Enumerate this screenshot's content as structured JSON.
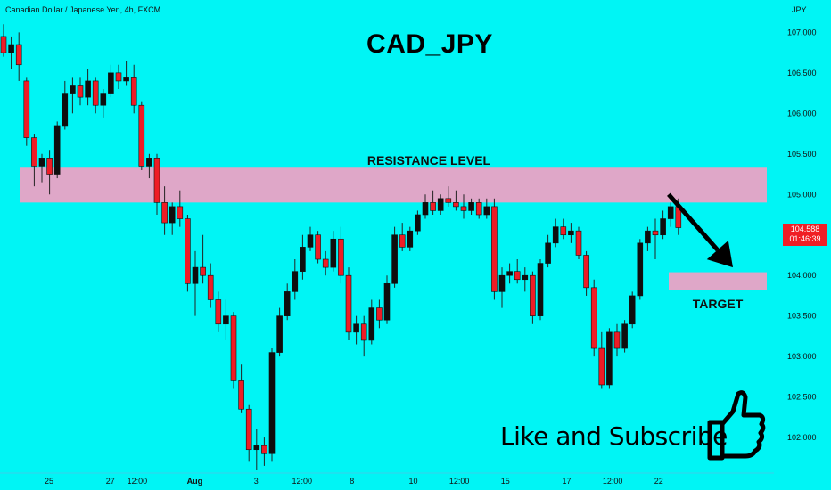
{
  "header": {
    "symbol_info": "Canadian Dollar / Japanese Yen, 4h, FXCM",
    "currency": "JPY",
    "title": "CAD_JPY"
  },
  "annotations": {
    "resistance_label": "RESISTANCE LEVEL",
    "target_label": "TARGET",
    "cta": "Like and Subscribe",
    "resistance_zone": [
      104.9,
      105.33
    ],
    "target_zone": [
      103.82,
      104.04
    ],
    "arrow": {
      "from": [
        56.5,
        105.0
      ],
      "to": [
        60.0,
        104.1
      ]
    }
  },
  "price_badge": {
    "price": "104.588",
    "countdown": "01:46:39"
  },
  "colors": {
    "background": "#00f5f5",
    "bull": "#0e0e0e",
    "bear": "#ee1c25",
    "zone": "#dfa7c8",
    "badge": "#f01e24"
  },
  "icons": {
    "like": "thumbs-up-icon",
    "arrow": "down-arrow-icon"
  },
  "chart_data": {
    "type": "candlestick",
    "ylim": [
      101.55,
      107.4
    ],
    "yticks": [
      102.0,
      102.5,
      103.0,
      103.5,
      104.0,
      104.5,
      105.0,
      105.5,
      106.0,
      106.5,
      107.0
    ],
    "ytick_labels": [
      "102.000",
      "102.500",
      "103.000",
      "103.500",
      "104.000",
      "104.500",
      "105.000",
      "105.500",
      "106.000",
      "106.500",
      "107.000"
    ],
    "xticks": [
      {
        "label": "25",
        "i": 5
      },
      {
        "label": "27",
        "i": 13
      },
      {
        "label": "12:00",
        "i": 16.5
      },
      {
        "label": "Aug",
        "i": 24
      },
      {
        "label": "3",
        "i": 32
      },
      {
        "label": "12:00",
        "i": 38
      },
      {
        "label": "8",
        "i": 44.5
      },
      {
        "label": "10",
        "i": 52.5
      },
      {
        "label": "12:00",
        "i": 58.5
      },
      {
        "label": "15",
        "i": 64.5
      },
      {
        "label": "17",
        "i": 72.5
      },
      {
        "label": "12:00",
        "i": 78.5
      },
      {
        "label": "22",
        "i": 84.5
      }
    ],
    "current_price": 104.588,
    "candles": [
      [
        106.95,
        107.1,
        106.7,
        106.75
      ],
      [
        106.75,
        106.95,
        106.55,
        106.85
      ],
      [
        106.85,
        107.0,
        106.4,
        106.6
      ],
      [
        106.4,
        106.45,
        105.6,
        105.7
      ],
      [
        105.7,
        105.75,
        105.1,
        105.35
      ],
      [
        105.35,
        105.5,
        105.15,
        105.45
      ],
      [
        105.45,
        105.55,
        105.0,
        105.25
      ],
      [
        105.25,
        105.9,
        105.2,
        105.85
      ],
      [
        105.85,
        106.4,
        105.8,
        106.25
      ],
      [
        106.25,
        106.45,
        106.0,
        106.35
      ],
      [
        106.35,
        106.45,
        106.1,
        106.2
      ],
      [
        106.2,
        106.55,
        106.1,
        106.4
      ],
      [
        106.4,
        106.45,
        106.0,
        106.1
      ],
      [
        106.1,
        106.3,
        105.95,
        106.25
      ],
      [
        106.25,
        106.6,
        106.2,
        106.5
      ],
      [
        106.5,
        106.6,
        106.3,
        106.4
      ],
      [
        106.4,
        106.65,
        106.35,
        106.45
      ],
      [
        106.45,
        106.6,
        106.0,
        106.1
      ],
      [
        106.1,
        106.15,
        105.3,
        105.35
      ],
      [
        105.35,
        105.5,
        105.2,
        105.45
      ],
      [
        105.45,
        105.5,
        104.75,
        104.9
      ],
      [
        104.9,
        105.1,
        104.5,
        104.65
      ],
      [
        104.65,
        104.9,
        104.5,
        104.85
      ],
      [
        104.85,
        105.05,
        104.6,
        104.7
      ],
      [
        104.7,
        104.75,
        103.8,
        103.9
      ],
      [
        103.9,
        104.3,
        103.5,
        104.1
      ],
      [
        104.1,
        104.5,
        103.9,
        104.0
      ],
      [
        104.0,
        104.15,
        103.6,
        103.7
      ],
      [
        103.7,
        103.8,
        103.3,
        103.4
      ],
      [
        103.4,
        103.7,
        103.2,
        103.5
      ],
      [
        103.5,
        103.55,
        102.6,
        102.7
      ],
      [
        102.7,
        102.9,
        102.3,
        102.35
      ],
      [
        102.35,
        102.4,
        101.7,
        101.85
      ],
      [
        101.85,
        102.1,
        101.6,
        101.9
      ],
      [
        101.9,
        102.0,
        101.65,
        101.8
      ],
      [
        101.8,
        103.1,
        101.7,
        103.05
      ],
      [
        103.05,
        103.6,
        103.0,
        103.5
      ],
      [
        103.5,
        103.9,
        103.45,
        103.8
      ],
      [
        103.8,
        104.2,
        103.7,
        104.05
      ],
      [
        104.05,
        104.5,
        103.95,
        104.35
      ],
      [
        104.35,
        104.6,
        104.3,
        104.5
      ],
      [
        104.5,
        104.55,
        104.15,
        104.2
      ],
      [
        104.2,
        104.3,
        104.0,
        104.1
      ],
      [
        104.1,
        104.55,
        104.05,
        104.45
      ],
      [
        104.45,
        104.6,
        103.9,
        104.0
      ],
      [
        104.0,
        104.1,
        103.2,
        103.3
      ],
      [
        103.3,
        103.5,
        103.15,
        103.4
      ],
      [
        103.4,
        103.5,
        103.0,
        103.2
      ],
      [
        103.2,
        103.7,
        103.15,
        103.6
      ],
      [
        103.6,
        103.7,
        103.35,
        103.45
      ],
      [
        103.45,
        104.0,
        103.4,
        103.9
      ],
      [
        103.9,
        104.6,
        103.85,
        104.5
      ],
      [
        104.5,
        104.65,
        104.3,
        104.35
      ],
      [
        104.35,
        104.6,
        104.3,
        104.55
      ],
      [
        104.55,
        104.8,
        104.5,
        104.75
      ],
      [
        104.75,
        105.0,
        104.7,
        104.9
      ],
      [
        104.9,
        105.05,
        104.75,
        104.8
      ],
      [
        104.8,
        105.0,
        104.75,
        104.95
      ],
      [
        104.95,
        105.1,
        104.85,
        104.9
      ],
      [
        104.9,
        105.05,
        104.8,
        104.85
      ],
      [
        104.85,
        105.0,
        104.7,
        104.8
      ],
      [
        104.8,
        104.95,
        104.75,
        104.9
      ],
      [
        104.9,
        104.95,
        104.7,
        104.75
      ],
      [
        104.75,
        104.95,
        104.7,
        104.85
      ],
      [
        104.85,
        104.95,
        103.7,
        103.8
      ],
      [
        103.8,
        104.1,
        103.6,
        104.0
      ],
      [
        104.0,
        104.15,
        103.9,
        104.05
      ],
      [
        104.05,
        104.2,
        103.9,
        103.95
      ],
      [
        103.95,
        104.1,
        103.8,
        104.0
      ],
      [
        104.0,
        104.05,
        103.4,
        103.5
      ],
      [
        103.5,
        104.2,
        103.45,
        104.15
      ],
      [
        104.15,
        104.5,
        104.1,
        104.4
      ],
      [
        104.4,
        104.7,
        104.35,
        104.6
      ],
      [
        104.6,
        104.7,
        104.45,
        104.5
      ],
      [
        104.5,
        104.65,
        104.4,
        104.55
      ],
      [
        104.55,
        104.6,
        104.2,
        104.25
      ],
      [
        104.25,
        104.3,
        103.75,
        103.85
      ],
      [
        103.85,
        103.95,
        103.0,
        103.1
      ],
      [
        103.1,
        103.3,
        102.6,
        102.65
      ],
      [
        102.65,
        103.35,
        102.6,
        103.3
      ],
      [
        103.3,
        103.4,
        103.0,
        103.1
      ],
      [
        103.1,
        103.45,
        103.05,
        103.4
      ],
      [
        103.4,
        103.8,
        103.35,
        103.75
      ],
      [
        103.75,
        104.45,
        103.7,
        104.4
      ],
      [
        104.4,
        104.6,
        104.3,
        104.55
      ],
      [
        104.55,
        104.7,
        104.2,
        104.5
      ],
      [
        104.5,
        104.8,
        104.45,
        104.7
      ],
      [
        104.7,
        104.9,
        104.6,
        104.85
      ],
      [
        104.85,
        104.95,
        104.5,
        104.59
      ]
    ]
  }
}
